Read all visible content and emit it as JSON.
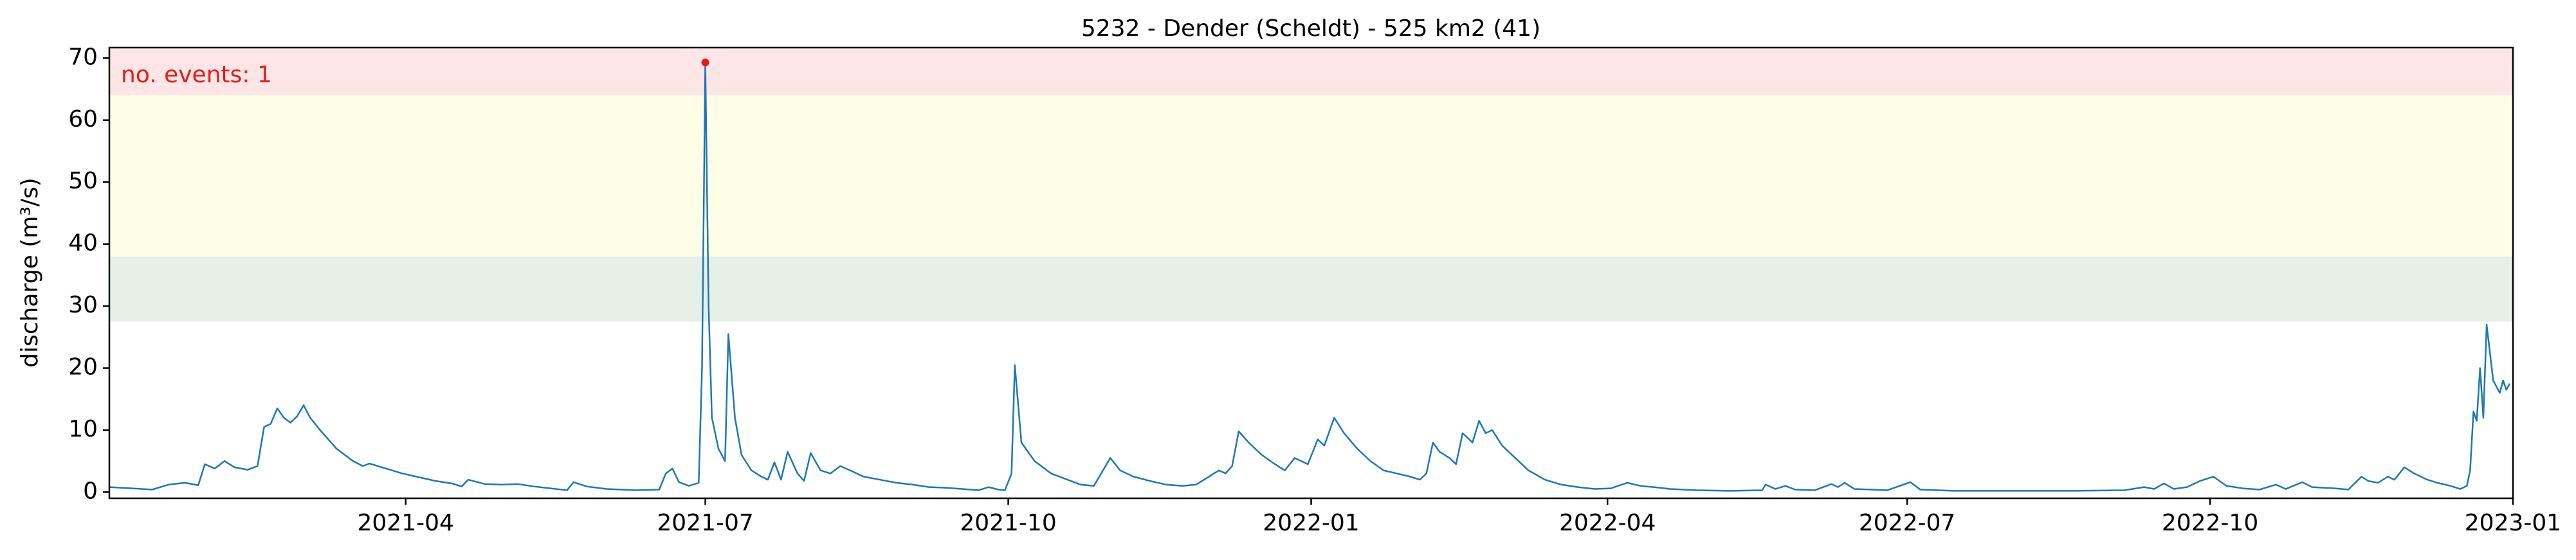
{
  "chart_data": {
    "type": "line",
    "title": "5232 - Dender (Scheldt) - 525 km2 (41)",
    "y_label": "discharge (m³/s)",
    "annotation": "no. events: 1",
    "annotation_color": "#e41a1c",
    "color": "#1f77b4",
    "xlim": [
      "2021-01",
      "2023-01"
    ],
    "xticks": [
      "2021-04",
      "2021-07",
      "2021-10",
      "2022-01",
      "2022-04",
      "2022-07",
      "2022-10",
      "2023-01"
    ],
    "ylim": [
      -1,
      71.7
    ],
    "yticks": [
      0,
      10,
      20,
      30,
      40,
      50,
      60,
      70
    ],
    "bands": [
      {
        "from": 27.5,
        "to": 38,
        "color": "#e6f0e6"
      },
      {
        "from": 38,
        "to": 64,
        "color": "#fefee6"
      },
      {
        "from": 64,
        "to": 71.7,
        "color": "#fee6e6"
      }
    ],
    "events": [
      {
        "x": "2021-07-01",
        "value": 69.3,
        "color": "#e41a1c"
      }
    ],
    "x": [
      "2021-01-01",
      "2021-01-08",
      "2021-01-14",
      "2021-01-19",
      "2021-01-24",
      "2021-01-28",
      "2021-01-30",
      "2021-02-02",
      "2021-02-05",
      "2021-02-08",
      "2021-02-12",
      "2021-02-15",
      "2021-02-17",
      "2021-02-19",
      "2021-02-21",
      "2021-02-23",
      "2021-02-25",
      "2021-02-27",
      "2021-03-01",
      "2021-03-03",
      "2021-03-06",
      "2021-03-11",
      "2021-03-16",
      "2021-03-19",
      "2021-03-21",
      "2021-03-26",
      "2021-03-31",
      "2021-04-05",
      "2021-04-10",
      "2021-04-15",
      "2021-04-18",
      "2021-04-20",
      "2021-04-25",
      "2021-04-30",
      "2021-05-05",
      "2021-05-10",
      "2021-05-20",
      "2021-05-22",
      "2021-05-26",
      "2021-06-01",
      "2021-06-10",
      "2021-06-17",
      "2021-06-19",
      "2021-06-21",
      "2021-06-23",
      "2021-06-26",
      "2021-06-29",
      "2021-06-30",
      "2021-07-01",
      "2021-07-02",
      "2021-07-03",
      "2021-07-05",
      "2021-07-07",
      "2021-07-08",
      "2021-07-10",
      "2021-07-12",
      "2021-07-15",
      "2021-07-18",
      "2021-07-20",
      "2021-07-22",
      "2021-07-24",
      "2021-07-26",
      "2021-07-29",
      "2021-07-31",
      "2021-08-02",
      "2021-08-05",
      "2021-08-08",
      "2021-08-11",
      "2021-08-14",
      "2021-08-18",
      "2021-08-23",
      "2021-08-28",
      "2021-09-02",
      "2021-09-07",
      "2021-09-12",
      "2021-09-17",
      "2021-09-22",
      "2021-09-25",
      "2021-09-28",
      "2021-09-30",
      "2021-10-02",
      "2021-10-03",
      "2021-10-05",
      "2021-10-09",
      "2021-10-14",
      "2021-10-19",
      "2021-10-23",
      "2021-10-27",
      "2021-11-01",
      "2021-11-04",
      "2021-11-08",
      "2021-11-13",
      "2021-11-18",
      "2021-11-23",
      "2021-11-27",
      "2021-12-01",
      "2021-12-04",
      "2021-12-06",
      "2021-12-08",
      "2021-12-10",
      "2021-12-13",
      "2021-12-17",
      "2021-12-21",
      "2021-12-24",
      "2021-12-27",
      "2021-12-29",
      "2021-12-31",
      "2022-01-03",
      "2022-01-05",
      "2022-01-08",
      "2022-01-11",
      "2022-01-15",
      "2022-01-19",
      "2022-01-23",
      "2022-01-27",
      "2022-01-31",
      "2022-02-03",
      "2022-02-05",
      "2022-02-07",
      "2022-02-09",
      "2022-02-12",
      "2022-02-14",
      "2022-02-16",
      "2022-02-19",
      "2022-02-21",
      "2022-02-23",
      "2022-02-25",
      "2022-02-28",
      "2022-03-04",
      "2022-03-08",
      "2022-03-13",
      "2022-03-18",
      "2022-03-23",
      "2022-03-28",
      "2022-04-02",
      "2022-04-07",
      "2022-04-11",
      "2022-04-15",
      "2022-04-20",
      "2022-04-28",
      "2022-05-08",
      "2022-05-18",
      "2022-05-19",
      "2022-05-22",
      "2022-05-25",
      "2022-05-28",
      "2022-06-03",
      "2022-06-08",
      "2022-06-10",
      "2022-06-12",
      "2022-06-15",
      "2022-06-25",
      "2022-07-02",
      "2022-07-05",
      "2022-07-15",
      "2022-08-01",
      "2022-08-20",
      "2022-09-05",
      "2022-09-11",
      "2022-09-14",
      "2022-09-17",
      "2022-09-20",
      "2022-09-24",
      "2022-09-28",
      "2022-10-02",
      "2022-10-06",
      "2022-10-11",
      "2022-10-16",
      "2022-10-21",
      "2022-10-24",
      "2022-10-29",
      "2022-11-01",
      "2022-11-08",
      "2022-11-12",
      "2022-11-16",
      "2022-11-18",
      "2022-11-21",
      "2022-11-24",
      "2022-11-26",
      "2022-11-29",
      "2022-12-02",
      "2022-12-06",
      "2022-12-09",
      "2022-12-13",
      "2022-12-16",
      "2022-12-18",
      "2022-12-19",
      "2022-12-20",
      "2022-12-21",
      "2022-12-22",
      "2022-12-23",
      "2022-12-24",
      "2022-12-26",
      "2022-12-28",
      "2022-12-29",
      "2022-12-30",
      "2022-12-31"
    ],
    "values": [
      0.8,
      0.6,
      0.4,
      1.2,
      1.5,
      1.1,
      4.5,
      3.8,
      5,
      4,
      3.6,
      4.2,
      10.5,
      11,
      13.5,
      12,
      11.2,
      12.2,
      14,
      12,
      10,
      7,
      5,
      4.2,
      4.6,
      3.8,
      3,
      2.4,
      1.8,
      1.4,
      0.9,
      2,
      1.3,
      1.2,
      1.3,
      0.9,
      0.3,
      1.6,
      0.9,
      0.5,
      0.3,
      0.4,
      3,
      3.8,
      1.6,
      1,
      1.5,
      20,
      69.3,
      30,
      12,
      7,
      5,
      25.5,
      12,
      6,
      3.5,
      2.5,
      2,
      4.8,
      2,
      6.5,
      3,
      1.8,
      6.3,
      3.5,
      3,
      4.2,
      3.5,
      2.5,
      2,
      1.5,
      1.2,
      0.8,
      0.7,
      0.5,
      0.3,
      0.8,
      0.4,
      0.3,
      3,
      20.5,
      8,
      5,
      3,
      2,
      1.2,
      1,
      5.5,
      3.5,
      2.5,
      1.8,
      1.2,
      1,
      1.2,
      2.5,
      3.5,
      3,
      4.2,
      9.8,
      8,
      6,
      4.5,
      3.5,
      5.5,
      5,
      4.5,
      8.5,
      7.5,
      12,
      9.5,
      7,
      5,
      3.5,
      3,
      2.5,
      2,
      3,
      8,
      6.5,
      5.5,
      4.5,
      9.5,
      8,
      11.5,
      9.5,
      10,
      7.5,
      5.5,
      3.5,
      2,
      1.2,
      0.8,
      0.5,
      0.6,
      1.5,
      1,
      0.8,
      0.5,
      0.3,
      0.2,
      0.3,
      1.2,
      0.5,
      1,
      0.4,
      0.3,
      1.3,
      0.8,
      1.5,
      0.5,
      0.3,
      1.6,
      0.4,
      0.2,
      0.2,
      0.2,
      0.3,
      0.8,
      0.5,
      1.4,
      0.5,
      0.8,
      1.8,
      2.5,
      1,
      0.6,
      0.4,
      1.2,
      0.5,
      1.6,
      0.8,
      0.6,
      0.4,
      2.5,
      1.8,
      1.5,
      2.5,
      2,
      4,
      3,
      2,
      1.5,
      1,
      0.5,
      1,
      3.5,
      13,
      11.5,
      20,
      12,
      27,
      18,
      16,
      18,
      16.5,
      17.5
    ]
  }
}
